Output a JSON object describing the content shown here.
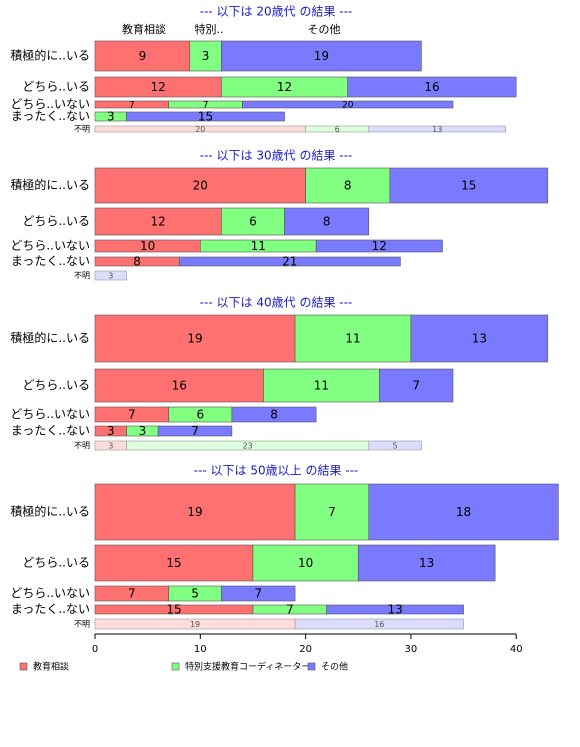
{
  "colors": {
    "counselor_solid": "#ff7070",
    "coordinator_solid": "#80ff80",
    "other_solid": "#7a7aff",
    "counselor_light": "#ffdcdc",
    "coordinator_light": "#dcffdc",
    "other_light": "#dcdcff",
    "title_blue": "#1a1acc"
  },
  "legend": [
    {
      "key": "counselor",
      "label": "教育相談"
    },
    {
      "key": "coordinator",
      "label": "特別支援教育コーディネーター"
    },
    {
      "key": "other",
      "label": "その他"
    }
  ],
  "top_column_labels": [
    "教育相談",
    "特別..",
    "その他"
  ],
  "row_labels": [
    "積極的に..いる",
    "どちら..いる",
    "どちら..いない",
    "まったく..ない",
    "不明"
  ],
  "chart_data": {
    "type": "bar",
    "orientation": "horizontal",
    "stacked": true,
    "xlim": [
      0,
      44
    ],
    "xticks": [
      0,
      10,
      20,
      30,
      40
    ],
    "grid": false,
    "legend_position": "bottom",
    "panels": [
      {
        "title": "--- 以下は 20歳代 の結果 ---",
        "categories": [
          "積極的に..いる",
          "どちら..いる",
          "どちら..いない",
          "まったく..ない",
          "不明"
        ],
        "series": [
          {
            "name": "教育相談",
            "values": [
              9,
              12,
              7,
              0,
              20
            ]
          },
          {
            "name": "特別支援教育コーディネーター",
            "values": [
              3,
              12,
              7,
              3,
              6
            ]
          },
          {
            "name": "その他",
            "values": [
              19,
              16,
              20,
              15,
              13
            ]
          }
        ]
      },
      {
        "title": "--- 以下は 30歳代 の結果 ---",
        "categories": [
          "積極的に..いる",
          "どちら..いる",
          "どちら..いない",
          "まったく..ない",
          "不明"
        ],
        "series": [
          {
            "name": "教育相談",
            "values": [
              20,
              12,
              10,
              8,
              0
            ]
          },
          {
            "name": "特別支援教育コーディネーター",
            "values": [
              8,
              6,
              11,
              0,
              0
            ]
          },
          {
            "name": "その他",
            "values": [
              15,
              8,
              12,
              21,
              3
            ]
          }
        ]
      },
      {
        "title": "--- 以下は 40歳代 の結果 ---",
        "categories": [
          "積極的に..いる",
          "どちら..いる",
          "どちら..いない",
          "まったく..ない",
          "不明"
        ],
        "series": [
          {
            "name": "教育相談",
            "values": [
              19,
              16,
              7,
              3,
              3
            ]
          },
          {
            "name": "特別支援教育コーディネーター",
            "values": [
              11,
              11,
              6,
              3,
              23
            ]
          },
          {
            "name": "その他",
            "values": [
              13,
              7,
              8,
              7,
              5
            ]
          }
        ]
      },
      {
        "title": "--- 以下は 50歳以上 の結果 ---",
        "categories": [
          "積極的に..いる",
          "どちら..いる",
          "どちら..いない",
          "まったく..ない",
          "不明"
        ],
        "series": [
          {
            "name": "教育相談",
            "values": [
              19,
              15,
              7,
              15,
              19
            ]
          },
          {
            "name": "特別支援教育コーディネーター",
            "values": [
              7,
              10,
              5,
              7,
              0
            ]
          },
          {
            "name": "その他",
            "values": [
              18,
              13,
              7,
              13,
              16
            ]
          }
        ]
      }
    ]
  }
}
